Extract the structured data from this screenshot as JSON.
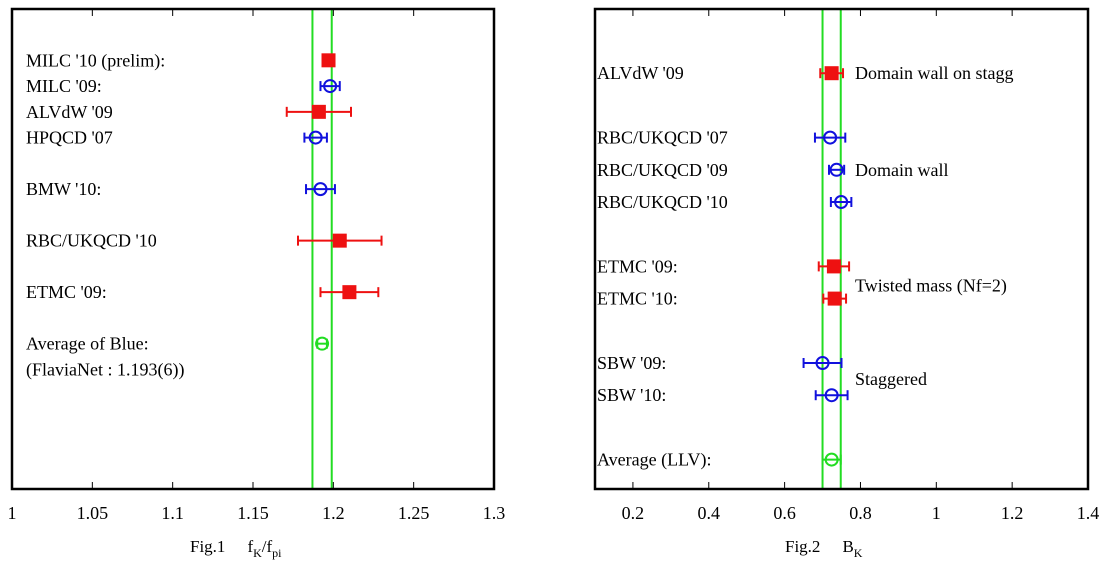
{
  "chart_data": [
    {
      "type": "scatter",
      "caption_prefix": "Fig.1",
      "xlabel": "f_K/f_pi",
      "xlabel_main": "f",
      "xlabel_sub1": "K",
      "xlabel_mid": "/f",
      "xlabel_sub2": "pi",
      "xlim": [
        1.0,
        1.3
      ],
      "ticks": [
        "1",
        "1.05",
        "1.1",
        "1.15",
        "1.2",
        "1.25",
        "1.3"
      ],
      "tick_values": [
        1.0,
        1.05,
        1.1,
        1.15,
        1.2,
        1.25,
        1.3
      ],
      "band": [
        1.187,
        1.199
      ],
      "band_color": "#22dd22",
      "labels": [
        {
          "text": "MILC '10 (prelim):",
          "row": 0.6
        },
        {
          "text": "MILC '09:",
          "row": 1.4
        },
        {
          "text": "ALVdW '09",
          "row": 2.2
        },
        {
          "text": "HPQCD '07",
          "row": 3.0
        },
        {
          "text": "BMW '10:",
          "row": 4.6
        },
        {
          "text": "RBC/UKQCD '10",
          "row": 6.2
        },
        {
          "text": "ETMC '09:",
          "row": 7.8
        },
        {
          "text": "Average of Blue:",
          "row": 9.4
        },
        {
          "text": "(FlaviaNet : 1.193(6))",
          "row": 10.2
        }
      ],
      "points": [
        {
          "name": "MILC '10 (prelim)",
          "x": 1.197,
          "err": 0.003,
          "row": 0.6,
          "marker": "square",
          "color": "#ee1111"
        },
        {
          "name": "MILC '09",
          "x": 1.198,
          "err": 0.006,
          "row": 1.4,
          "marker": "circle",
          "color": "#1111dd"
        },
        {
          "name": "ALVdW '09",
          "x": 1.191,
          "err": 0.02,
          "row": 2.2,
          "marker": "square",
          "color": "#ee1111"
        },
        {
          "name": "HPQCD '07",
          "x": 1.189,
          "err": 0.007,
          "row": 3.0,
          "marker": "circle",
          "color": "#1111dd"
        },
        {
          "name": "BMW '10",
          "x": 1.192,
          "err": 0.009,
          "row": 4.6,
          "marker": "circle",
          "color": "#1111dd"
        },
        {
          "name": "RBC/UKQCD '10",
          "x": 1.204,
          "err": 0.026,
          "row": 6.2,
          "marker": "square",
          "color": "#ee1111"
        },
        {
          "name": "ETMC '09",
          "x": 1.21,
          "err": 0.018,
          "row": 7.8,
          "marker": "square",
          "color": "#ee1111"
        },
        {
          "name": "Average of Blue",
          "x": 1.193,
          "err": 0.003,
          "row": 9.4,
          "marker": "circle",
          "color": "#22dd22"
        }
      ]
    },
    {
      "type": "scatter",
      "caption_prefix": "Fig.2",
      "xlabel": "B_K",
      "xlabel_main": "B",
      "xlabel_sub1": "K",
      "xlim": [
        0.1,
        1.4
      ],
      "ticks": [
        "0.2",
        "0.4",
        "0.6",
        "0.8",
        "1",
        "1.2",
        "1.4"
      ],
      "tick_values": [
        0.2,
        0.4,
        0.6,
        0.8,
        1.0,
        1.2,
        1.4
      ],
      "band": [
        0.7,
        0.748
      ],
      "band_color": "#22dd22",
      "labels": [
        {
          "text": "ALVdW '09",
          "row": 1.0
        },
        {
          "text": "RBC/UKQCD '07",
          "row": 3.0
        },
        {
          "text": "RBC/UKQCD '09",
          "row": 4.0
        },
        {
          "text": "RBC/UKQCD '10",
          "row": 5.0
        },
        {
          "text": "ETMC '09:",
          "row": 7.0
        },
        {
          "text": "ETMC  '10:",
          "row": 8.0
        },
        {
          "text": "SBW '09:",
          "row": 10.0
        },
        {
          "text": "SBW '10:",
          "row": 11.0
        },
        {
          "text": "Average (LLV):",
          "row": 13.0
        }
      ],
      "group_labels": [
        {
          "text": "Domain wall on stagg",
          "row": 1.0
        },
        {
          "text": "Domain wall",
          "row": 4.0
        },
        {
          "text": "Twisted mass (Nf=2)",
          "row": 7.6
        },
        {
          "text": "Staggered",
          "row": 10.5
        }
      ],
      "points": [
        {
          "name": "ALVdW '09",
          "x": 0.724,
          "err": 0.03,
          "row": 1.0,
          "marker": "square",
          "color": "#ee1111"
        },
        {
          "name": "RBC/UKQCD '07",
          "x": 0.72,
          "err": 0.04,
          "row": 3.0,
          "marker": "circle",
          "color": "#1111dd"
        },
        {
          "name": "RBC/UKQCD '09",
          "x": 0.737,
          "err": 0.02,
          "row": 4.0,
          "marker": "circle",
          "color": "#1111dd"
        },
        {
          "name": "RBC/UKQCD '10",
          "x": 0.749,
          "err": 0.027,
          "row": 5.0,
          "marker": "circle",
          "color": "#1111dd"
        },
        {
          "name": "ETMC '09",
          "x": 0.73,
          "err": 0.04,
          "row": 7.0,
          "marker": "square",
          "color": "#ee1111"
        },
        {
          "name": "ETMC '10",
          "x": 0.732,
          "err": 0.03,
          "row": 8.0,
          "marker": "square",
          "color": "#ee1111"
        },
        {
          "name": "SBW '09",
          "x": 0.7,
          "err": 0.05,
          "row": 10.0,
          "marker": "circle",
          "color": "#1111dd"
        },
        {
          "name": "SBW '10",
          "x": 0.724,
          "err": 0.042,
          "row": 11.0,
          "marker": "circle",
          "color": "#1111dd"
        },
        {
          "name": "Average (LLV)",
          "x": 0.724,
          "err": 0.024,
          "row": 13.0,
          "marker": "circle",
          "color": "#22dd22"
        }
      ]
    }
  ]
}
